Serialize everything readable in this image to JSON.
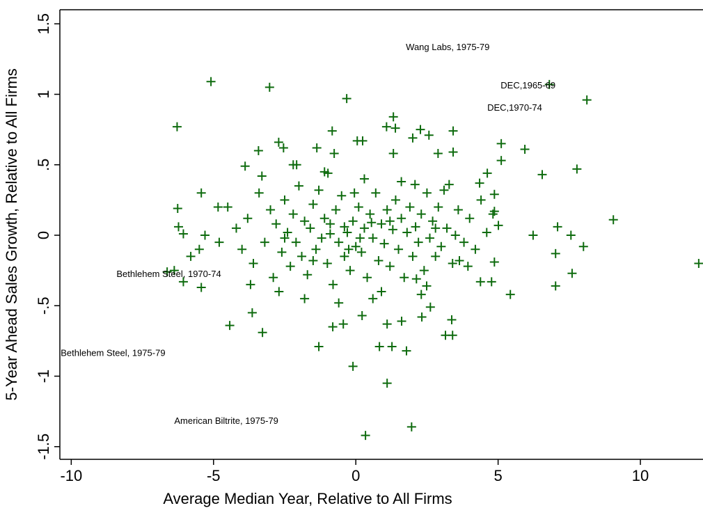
{
  "chart_data": {
    "type": "scatter",
    "x_label": "Average Median Year, Relative to All Firms",
    "y_label": "5-Year Ahead Sales Growth, Relative to All Firms",
    "xlim": [
      -10.4,
      12.2
    ],
    "ylim": [
      -1.59,
      1.6
    ],
    "xticks": [
      -10,
      -5,
      0,
      5,
      10
    ],
    "yticks": [
      -1.5,
      -1,
      {
        "value": -0.5,
        "label": "-.5"
      },
      0,
      {
        "value": 0.5,
        "label": ".5"
      },
      1,
      1.5
    ],
    "marker": "plus",
    "x": [
      -5.09,
      -3.03,
      -6.28,
      -0.32,
      6.8,
      8.12,
      12.05,
      9.05,
      7.77,
      6.55,
      5.94,
      5.11,
      6.23,
      5.43,
      7.09,
      7.02,
      7.02,
      7.56,
      7.6,
      8,
      1.1,
      0.34,
      1.96,
      -0.1,
      0.83,
      1.27,
      1.78,
      -1.3,
      -4.43,
      -3.28,
      -3.64,
      -6.06,
      -6.38,
      -6.63,
      -5.43,
      -5.43,
      -6.26,
      -6.23,
      -6.06,
      1.32,
      1.08,
      1.39,
      2.27,
      2,
      2.57,
      -0.83,
      3.42,
      1.32,
      2.89,
      3.42,
      2.08,
      3.28,
      -3.42,
      -2.71,
      -2.54,
      -0.98,
      -2.08,
      -1.37,
      -0.76,
      0.05,
      0.24,
      -3.89,
      -4.84,
      2.49,
      2.13,
      3.15,
      3.4,
      3.37,
      2.32,
      2.62,
      0.22,
      -0.44,
      -0.81,
      1.1,
      1.61,
      4.77,
      4.38,
      4.87,
      3.94,
      3.64,
      4.62,
      5.11,
      4.35,
      4.87,
      4.87,
      5.01,
      4.82,
      -4.5,
      -4.2,
      -4,
      -3.8,
      -3.6,
      -3.4,
      -3.2,
      -3,
      -2.9,
      -2.8,
      -2.6,
      -2.5,
      -2.4,
      -2.3,
      -2.2,
      -2.1,
      -2,
      -1.9,
      -1.8,
      -1.7,
      -1.6,
      -1.5,
      -1.4,
      -1.3,
      -1.2,
      -1.1,
      -1,
      -0.9,
      -0.8,
      -0.7,
      -0.6,
      -0.5,
      -0.4,
      -0.3,
      -0.2,
      -0.1,
      0,
      0.1,
      0.2,
      0.3,
      0.4,
      0.5,
      0.6,
      0.7,
      0.8,
      0.9,
      1,
      1.1,
      1.2,
      1.3,
      1.4,
      1.5,
      1.6,
      1.7,
      1.8,
      1.9,
      2,
      2.1,
      2.2,
      2.3,
      2.4,
      2.5,
      2.6,
      2.7,
      2.8,
      2.9,
      3,
      3.2,
      3.4,
      3.6,
      3.8,
      4,
      4.2,
      4.4,
      4.6,
      -3.7,
      -3.3,
      -2.7,
      -2.2,
      -1.8,
      -1.1,
      -0.6,
      0.3,
      0.9,
      1.6,
      2.3,
      3.1,
      -4.8,
      -5.3,
      -5.5,
      -5.8,
      -0.9,
      -0.4,
      0.15,
      0.55,
      -0.25,
      1.2,
      -1.5,
      -2.5,
      3.5,
      2.8,
      -0.05,
      0.6
    ],
    "series": [
      {
        "color": "#0e6b0e",
        "values": [
          1.09,
          1.05,
          0.77,
          0.97,
          1.07,
          0.96,
          -0.2,
          0.11,
          0.47,
          0.43,
          0.61,
          0.65,
          0,
          -0.42,
          0.06,
          -0.13,
          -0.36,
          0,
          -0.27,
          -0.08,
          -1.05,
          -1.42,
          -1.36,
          -0.93,
          -0.79,
          -0.79,
          -0.82,
          -0.79,
          -0.64,
          -0.69,
          -0.55,
          -0.33,
          -0.25,
          -0.26,
          -0.37,
          0.3,
          0.19,
          0.06,
          0.01,
          0.84,
          0.77,
          0.76,
          0.75,
          0.69,
          0.71,
          0.74,
          0.74,
          0.58,
          0.58,
          0.59,
          0.36,
          0.36,
          0.6,
          0.66,
          0.62,
          0.44,
          0.5,
          0.62,
          0.58,
          0.67,
          0.67,
          0.49,
          0.2,
          -0.36,
          -0.31,
          -0.71,
          -0.71,
          -0.6,
          -0.58,
          -0.51,
          -0.57,
          -0.63,
          -0.65,
          -0.63,
          -0.61,
          -0.33,
          -0.33,
          -0.19,
          -0.22,
          -0.18,
          0.44,
          0.53,
          0.37,
          0.29,
          0.17,
          0.07,
          0.15,
          0.2,
          0.05,
          -0.1,
          0.12,
          -0.2,
          0.3,
          -0.05,
          0.18,
          -0.3,
          0.08,
          -0.12,
          0.25,
          0.02,
          -0.22,
          0.15,
          -0.05,
          0.35,
          -0.15,
          0.1,
          -0.28,
          0.05,
          0.22,
          -0.1,
          0.32,
          -0.02,
          0.12,
          -0.2,
          0.08,
          -0.35,
          0.18,
          -0.05,
          0.28,
          -0.15,
          0.02,
          -0.25,
          0.1,
          -0.08,
          0.2,
          -0.12,
          0.05,
          -0.3,
          0.15,
          -0.02,
          0.3,
          -0.18,
          0.08,
          -0.06,
          0.18,
          -0.22,
          0.04,
          0.25,
          -0.1,
          0.12,
          -0.3,
          0.02,
          0.2,
          -0.15,
          0.06,
          -0.05,
          0.15,
          -0.25,
          0.3,
          -0.02,
          0.1,
          -0.15,
          0.2,
          -0.08,
          0.05,
          -0.2,
          0.18,
          -0.05,
          0.12,
          -0.1,
          0.25,
          0.02,
          -0.35,
          0.42,
          -0.4,
          0.5,
          -0.45,
          0.45,
          -0.48,
          0.4,
          -0.4,
          0.38,
          -0.42,
          0.32,
          -0.05,
          0,
          -0.1,
          -0.15,
          0.01,
          0.06,
          -0.02,
          0.09,
          -0.1,
          0.1,
          -0.18,
          -0.02,
          0,
          0.05,
          0.3,
          -0.45
        ]
      }
    ],
    "annotations": [
      {
        "text": "Wang Labs, 1975-79",
        "x": 1.76,
        "y": 1.33
      },
      {
        "text": "DEC,1965-69",
        "x": 5.09,
        "y": 1.06
      },
      {
        "text": "DEC,1970-74",
        "x": 4.62,
        "y": 0.9
      },
      {
        "text": "Bethlehem Steel, 1970-74",
        "x": -8.41,
        "y": -0.28
      },
      {
        "text": "Bethlehem Steel, 1975-79",
        "x": -10.37,
        "y": -0.84
      },
      {
        "text": "American Biltrite, 1975-79",
        "x": -6.38,
        "y": -1.32
      }
    ]
  }
}
